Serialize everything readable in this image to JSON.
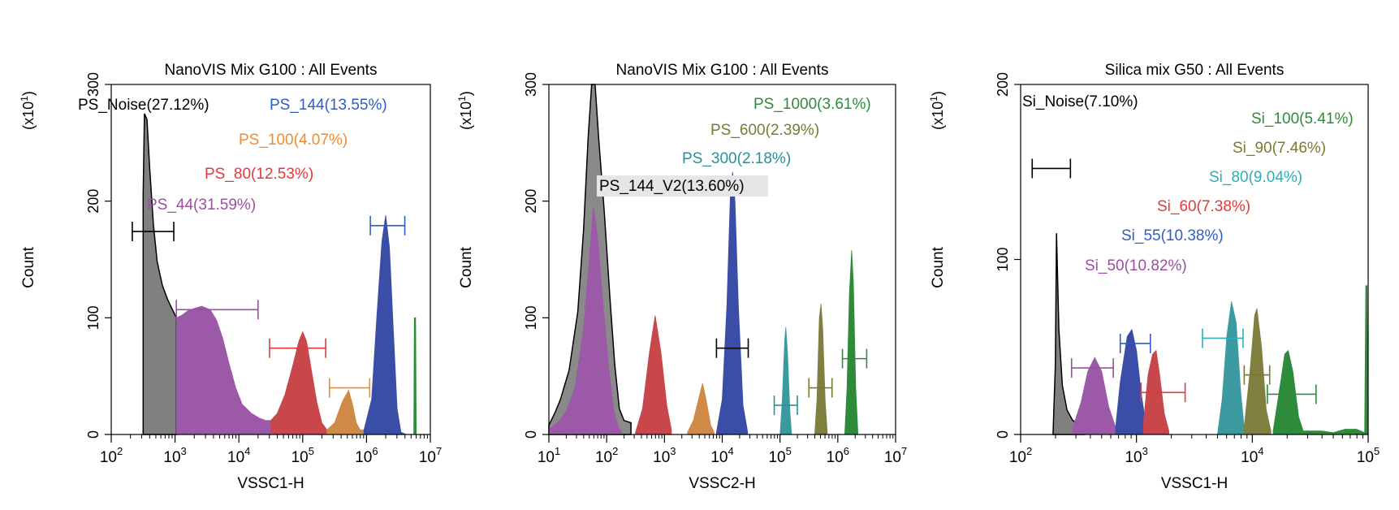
{
  "figure": {
    "count_label": "Count",
    "multiplier": {
      "prefix": "(x10",
      "exp": "1",
      "suffix": ")"
    }
  },
  "chart_data": [
    {
      "type": "area",
      "title": "NanoVIS Mix G100 : All Events",
      "xlabel": "VSSC1-H",
      "ylabel": "Count",
      "xscale": "log10",
      "xlim_exp": [
        2,
        7
      ],
      "ylim": [
        0,
        300
      ],
      "y_ticks": [
        0,
        100,
        200,
        300
      ],
      "x_tick_exps": [
        2,
        3,
        4,
        5,
        6,
        7
      ],
      "grid": false,
      "series": [
        {
          "name": "PS_Noise",
          "label": "PS_Noise(27.12%)",
          "color": "#000000",
          "fill": "#808080",
          "points": [
            [
              2.5,
              0
            ],
            [
              2.5,
              205
            ],
            [
              2.52,
              275
            ],
            [
              2.56,
              270
            ],
            [
              2.6,
              230
            ],
            [
              2.66,
              180
            ],
            [
              2.72,
              148
            ],
            [
              2.8,
              128
            ],
            [
              2.88,
              116
            ],
            [
              2.95,
              108
            ],
            [
              3.02,
              100
            ]
          ],
          "gate": [
            2.33,
            2.98,
            174
          ]
        },
        {
          "name": "PS_44",
          "label": "PS_44(31.59%)",
          "color": "#9b4ea2",
          "fill": "#9b59a8",
          "points": [
            [
              3.02,
              100
            ],
            [
              3.1,
              102
            ],
            [
              3.2,
              106
            ],
            [
              3.3,
              108
            ],
            [
              3.42,
              110
            ],
            [
              3.55,
              107
            ],
            [
              3.65,
              98
            ],
            [
              3.75,
              82
            ],
            [
              3.85,
              60
            ],
            [
              3.95,
              40
            ],
            [
              4.05,
              26
            ],
            [
              4.2,
              18
            ],
            [
              4.32,
              14
            ],
            [
              4.42,
              12
            ],
            [
              4.5,
              12
            ]
          ],
          "gate": [
            3.02,
            4.3,
            107
          ]
        },
        {
          "name": "PS_80",
          "label": "PS_80(12.53%)",
          "color": "#e23a3a",
          "fill": "#c8474a",
          "points": [
            [
              4.5,
              12
            ],
            [
              4.6,
              18
            ],
            [
              4.72,
              34
            ],
            [
              4.84,
              58
            ],
            [
              4.94,
              80
            ],
            [
              5.0,
              88
            ],
            [
              5.06,
              80
            ],
            [
              5.14,
              54
            ],
            [
              5.22,
              28
            ],
            [
              5.3,
              10
            ],
            [
              5.38,
              4
            ]
          ],
          "gate": [
            4.48,
            5.36,
            74
          ]
        },
        {
          "name": "PS_100",
          "label": "PS_100(4.07%)",
          "color": "#f08a30",
          "fill": "#d08a48",
          "points": [
            [
              5.38,
              4
            ],
            [
              5.5,
              10
            ],
            [
              5.62,
              28
            ],
            [
              5.72,
              38
            ],
            [
              5.78,
              26
            ],
            [
              5.84,
              10
            ],
            [
              5.9,
              4
            ],
            [
              5.96,
              4
            ]
          ],
          "gate": [
            5.42,
            6.05,
            40
          ]
        },
        {
          "name": "PS_144",
          "label": "PS_144(13.55%)",
          "color": "#2f5cc6",
          "fill": "#3a4ea8",
          "points": [
            [
              5.96,
              4
            ],
            [
              6.08,
              30
            ],
            [
              6.16,
              100
            ],
            [
              6.24,
              165
            ],
            [
              6.3,
              188
            ],
            [
              6.36,
              160
            ],
            [
              6.42,
              90
            ],
            [
              6.48,
              22
            ],
            [
              6.54,
              2
            ],
            [
              6.62,
              0
            ]
          ],
          "gate": [
            6.06,
            6.6,
            179
          ]
        },
        {
          "name": "PS_Edge",
          "label": "",
          "color": "#2e8b3a",
          "fill": "#2e8b3a",
          "points": [
            [
              6.74,
              0
            ],
            [
              6.75,
              100
            ],
            [
              6.77,
              100
            ],
            [
              6.78,
              0
            ]
          ],
          "gate": null
        }
      ]
    },
    {
      "type": "area",
      "title": "NanoVIS Mix G100 : All Events",
      "xlabel": "VSSC2-H",
      "ylabel": "Count",
      "xscale": "log10",
      "xlim_exp": [
        1,
        7
      ],
      "ylim": [
        0,
        300
      ],
      "y_ticks": [
        0,
        100,
        200,
        300
      ],
      "x_tick_exps": [
        1,
        2,
        3,
        4,
        5,
        6,
        7
      ],
      "grid": false,
      "series": [
        {
          "name": "PS_144_V2",
          "label": "PS_144_V2(13.60%)",
          "color": "#000000",
          "fill": "#8a8a8a",
          "points": [
            [
              1.0,
              8
            ],
            [
              1.1,
              18
            ],
            [
              1.2,
              30
            ],
            [
              1.35,
              55
            ],
            [
              1.5,
              105
            ],
            [
              1.6,
              175
            ],
            [
              1.68,
              255
            ],
            [
              1.74,
              300
            ],
            [
              1.8,
              300
            ],
            [
              1.86,
              255
            ],
            [
              1.96,
              190
            ],
            [
              2.06,
              115
            ],
            [
              2.14,
              60
            ],
            [
              2.22,
              22
            ],
            [
              2.3,
              12
            ],
            [
              2.42,
              10
            ]
          ],
          "gate": [
            3.9,
            4.45,
            74
          ],
          "boxed": true
        },
        {
          "name": "PS_144_magenta",
          "label": "",
          "color": "#9b4ea2",
          "fill": "#9b59a8",
          "points": [
            [
              1.0,
              4
            ],
            [
              1.15,
              10
            ],
            [
              1.3,
              20
            ],
            [
              1.45,
              40
            ],
            [
              1.6,
              90
            ],
            [
              1.7,
              150
            ],
            [
              1.77,
              195
            ],
            [
              1.84,
              170
            ],
            [
              1.94,
              110
            ],
            [
              2.04,
              55
            ],
            [
              2.12,
              22
            ],
            [
              2.2,
              6
            ],
            [
              2.26,
              2
            ]
          ],
          "gate": null
        },
        {
          "name": "PS_red",
          "label": "",
          "color": "#e23a3a",
          "fill": "#c8474a",
          "points": [
            [
              2.5,
              2
            ],
            [
              2.62,
              22
            ],
            [
              2.74,
              70
            ],
            [
              2.84,
              102
            ],
            [
              2.94,
              70
            ],
            [
              3.04,
              25
            ],
            [
              3.12,
              4
            ]
          ],
          "gate": null
        },
        {
          "name": "PS_orange",
          "label": "",
          "color": "#f08a30",
          "fill": "#d08a48",
          "points": [
            [
              3.4,
              2
            ],
            [
              3.5,
              12
            ],
            [
              3.6,
              32
            ],
            [
              3.66,
              44
            ],
            [
              3.72,
              30
            ],
            [
              3.8,
              8
            ],
            [
              3.86,
              2
            ]
          ],
          "gate": null
        },
        {
          "name": "PS_blue",
          "label": "",
          "color": "#2f5cc6",
          "fill": "#3a4ea8",
          "points": [
            [
              3.9,
              2
            ],
            [
              4.0,
              30
            ],
            [
              4.08,
              110
            ],
            [
              4.14,
              205
            ],
            [
              4.18,
              225
            ],
            [
              4.22,
              200
            ],
            [
              4.28,
              110
            ],
            [
              4.36,
              25
            ],
            [
              4.44,
              2
            ]
          ],
          "gate": null
        },
        {
          "name": "PS_300",
          "label": "PS_300(2.18%)",
          "color": "#2a8f95",
          "fill": "#3a9aa0",
          "points": [
            [
              5.0,
              0
            ],
            [
              5.04,
              30
            ],
            [
              5.08,
              80
            ],
            [
              5.1,
              92
            ],
            [
              5.13,
              70
            ],
            [
              5.17,
              20
            ],
            [
              5.2,
              0
            ]
          ],
          "gate": [
            4.9,
            5.3,
            25
          ]
        },
        {
          "name": "PS_600",
          "label": "PS_600(2.39%)",
          "color": "#7a7a30",
          "fill": "#7f7f40",
          "points": [
            [
              5.6,
              0
            ],
            [
              5.64,
              30
            ],
            [
              5.68,
              100
            ],
            [
              5.71,
              112
            ],
            [
              5.74,
              90
            ],
            [
              5.78,
              30
            ],
            [
              5.82,
              0
            ]
          ],
          "gate": [
            5.5,
            5.9,
            40
          ]
        },
        {
          "name": "PS_1000",
          "label": "PS_1000(3.61%)",
          "color": "#2e8b3a",
          "fill": "#2e8b3a",
          "points": [
            [
              6.12,
              0
            ],
            [
              6.16,
              40
            ],
            [
              6.2,
              120
            ],
            [
              6.24,
              158
            ],
            [
              6.27,
              130
            ],
            [
              6.31,
              40
            ],
            [
              6.35,
              0
            ]
          ],
          "gate": [
            6.08,
            6.5,
            65
          ]
        }
      ]
    },
    {
      "type": "area",
      "title": "Silica mix G50 : All Events",
      "xlabel": "VSSC1-H",
      "ylabel": "Count",
      "xscale": "log10",
      "xlim_exp": [
        2,
        5
      ],
      "ylim": [
        0,
        200
      ],
      "y_ticks": [
        0,
        100,
        200
      ],
      "x_tick_exps": [
        2,
        3,
        4,
        5
      ],
      "grid": false,
      "series": [
        {
          "name": "Si_Noise",
          "label": "Si_Noise(7.10%)",
          "color": "#000000",
          "fill": "#808080",
          "points": [
            [
              2.28,
              0
            ],
            [
              2.3,
              40
            ],
            [
              2.31,
              115
            ],
            [
              2.33,
              60
            ],
            [
              2.36,
              28
            ],
            [
              2.4,
              14
            ],
            [
              2.45,
              8
            ],
            [
              2.5,
              6
            ],
            [
              2.55,
              4
            ]
          ],
          "gate": [
            2.1,
            2.43,
            152
          ]
        },
        {
          "name": "Si_50",
          "label": "Si_50(10.82%)",
          "color": "#9b4ea2",
          "fill": "#9b59a8",
          "points": [
            [
              2.45,
              4
            ],
            [
              2.52,
              18
            ],
            [
              2.58,
              36
            ],
            [
              2.64,
              44
            ],
            [
              2.7,
              36
            ],
            [
              2.76,
              16
            ],
            [
              2.82,
              4
            ]
          ],
          "gate": [
            2.44,
            2.8,
            38
          ]
        },
        {
          "name": "Si_55",
          "label": "Si_55(10.38%)",
          "color": "#2f5cc6",
          "fill": "#3a4ea8",
          "points": [
            [
              2.82,
              4
            ],
            [
              2.86,
              30
            ],
            [
              2.92,
              56
            ],
            [
              2.96,
              60
            ],
            [
              3.0,
              48
            ],
            [
              3.04,
              24
            ],
            [
              3.08,
              6
            ]
          ],
          "gate": [
            2.86,
            3.12,
            52
          ]
        },
        {
          "name": "Si_60",
          "label": "Si_60(7.38%)",
          "color": "#e23a3a",
          "fill": "#c8474a",
          "points": [
            [
              3.06,
              6
            ],
            [
              3.1,
              34
            ],
            [
              3.14,
              46
            ],
            [
              3.17,
              48
            ],
            [
              3.2,
              34
            ],
            [
              3.24,
              12
            ],
            [
              3.28,
              2
            ]
          ],
          "gate": [
            3.04,
            3.42,
            24
          ]
        },
        {
          "name": "Si_80",
          "label": "Si_80(9.04%)",
          "color": "#2aafba",
          "fill": "#3a9aa0",
          "points": [
            [
              3.7,
              0
            ],
            [
              3.74,
              20
            ],
            [
              3.78,
              56
            ],
            [
              3.82,
              76
            ],
            [
              3.86,
              64
            ],
            [
              3.9,
              24
            ],
            [
              3.93,
              4
            ]
          ],
          "gate": [
            3.57,
            3.92,
            55
          ]
        },
        {
          "name": "Si_90",
          "label": "Si_90(7.46%)",
          "color": "#7a7a30",
          "fill": "#7f7f40",
          "points": [
            [
              3.93,
              4
            ],
            [
              3.98,
              36
            ],
            [
              4.02,
              68
            ],
            [
              4.04,
              72
            ],
            [
              4.08,
              50
            ],
            [
              4.12,
              14
            ],
            [
              4.16,
              2
            ]
          ],
          "gate": [
            3.93,
            4.15,
            34
          ]
        },
        {
          "name": "Si_100",
          "label": "Si_100(5.41%)",
          "color": "#2e8b3a",
          "fill": "#2e8b3a",
          "points": [
            [
              4.18,
              2
            ],
            [
              4.24,
              28
            ],
            [
              4.28,
              46
            ],
            [
              4.31,
              48
            ],
            [
              4.35,
              36
            ],
            [
              4.4,
              10
            ],
            [
              4.44,
              2
            ],
            [
              4.6,
              2
            ],
            [
              4.7,
              1
            ],
            [
              4.8,
              3
            ],
            [
              4.9,
              3
            ],
            [
              4.97,
              1
            ],
            [
              4.98,
              85
            ],
            [
              4.99,
              85
            ],
            [
              5.0,
              0
            ]
          ],
          "gate": [
            4.13,
            4.55,
            23
          ]
        }
      ]
    }
  ]
}
